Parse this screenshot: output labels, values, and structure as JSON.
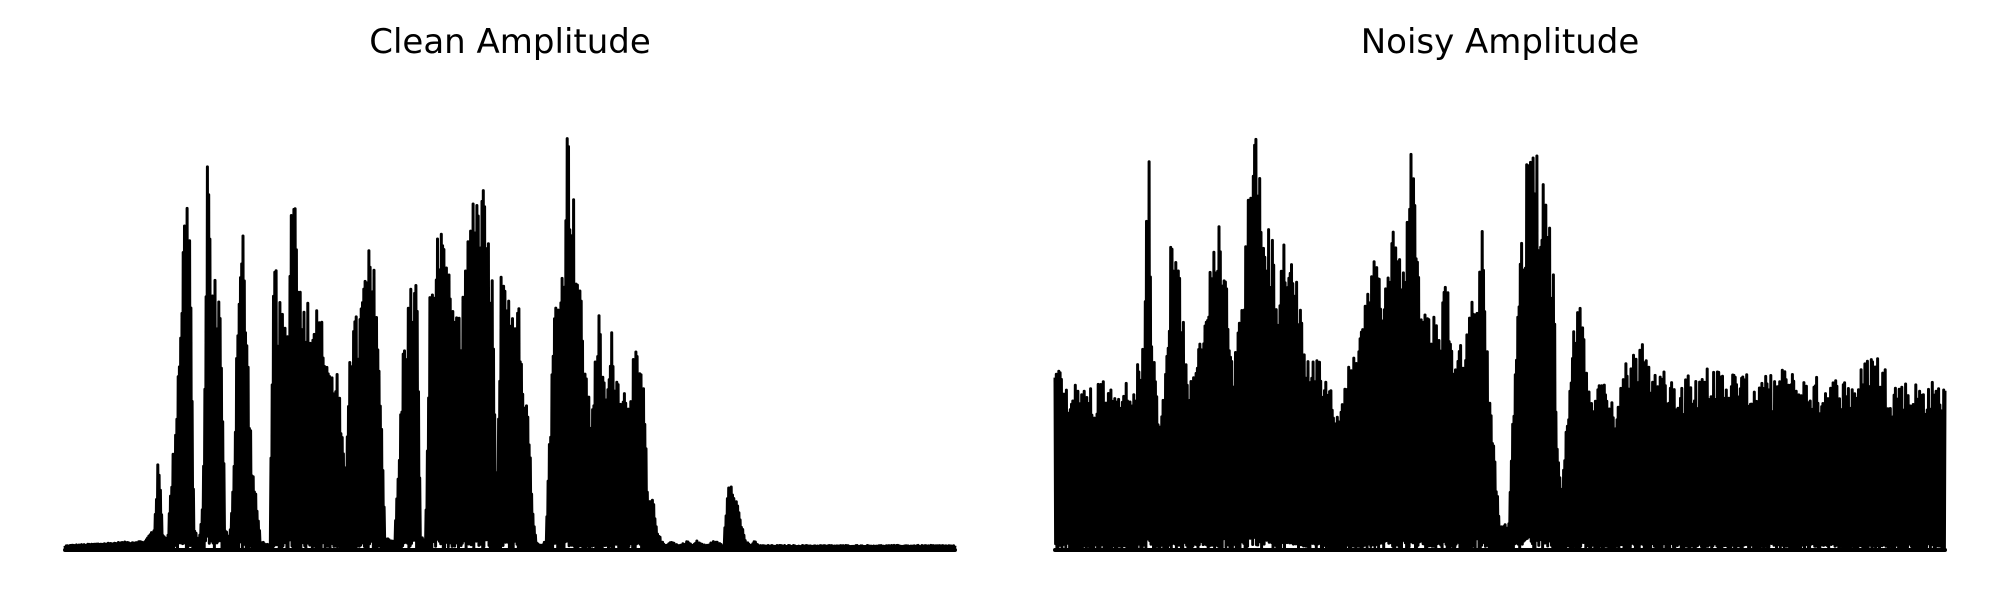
{
  "chart_data": [
    {
      "type": "line",
      "title": "Clean Amplitude",
      "xlabel": "",
      "ylabel": "",
      "axes": "off",
      "grid": false,
      "ylim": [
        0,
        1.0
      ],
      "line_color": "#000000",
      "envelope": {
        "x": [
          0.0,
          0.09,
          0.1,
          0.105,
          0.11,
          0.115,
          0.125,
          0.135,
          0.14,
          0.145,
          0.15,
          0.155,
          0.16,
          0.165,
          0.175,
          0.18,
          0.185,
          0.19,
          0.195,
          0.2,
          0.21,
          0.22,
          0.23,
          0.235,
          0.24,
          0.245,
          0.25,
          0.255,
          0.26,
          0.265,
          0.27,
          0.28,
          0.29,
          0.295,
          0.3,
          0.305,
          0.31,
          0.315,
          0.32,
          0.33,
          0.34,
          0.35,
          0.36,
          0.37,
          0.375,
          0.38,
          0.385,
          0.39,
          0.395,
          0.4,
          0.405,
          0.41,
          0.42,
          0.43,
          0.44,
          0.445,
          0.45,
          0.455,
          0.46,
          0.47,
          0.475,
          0.48,
          0.485,
          0.49,
          0.495,
          0.5,
          0.51,
          0.515,
          0.52,
          0.525,
          0.53,
          0.535,
          0.54,
          0.55,
          0.56,
          0.565,
          0.57,
          0.58,
          0.59,
          0.6,
          0.605,
          0.61,
          0.615,
          0.62,
          0.625,
          0.63,
          0.64,
          0.65,
          0.655,
          0.66,
          0.665,
          0.67,
          0.675,
          0.68,
          0.69,
          0.7,
          0.705,
          0.71,
          0.72,
          0.73,
          0.74,
          0.745,
          0.75,
          0.76,
          0.765,
          0.77,
          0.775,
          0.78,
          0.79,
          0.8,
          0.82,
          0.84,
          0.86,
          0.88,
          0.885,
          0.89,
          0.895,
          0.9,
          0.92,
          0.95,
          1.0
        ],
        "y": [
          0.01,
          0.02,
          0.05,
          0.21,
          0.04,
          0.02,
          0.32,
          0.8,
          0.78,
          0.05,
          0.02,
          0.1,
          0.9,
          0.62,
          0.57,
          0.05,
          0.02,
          0.21,
          0.65,
          0.72,
          0.2,
          0.02,
          0.01,
          0.68,
          0.55,
          0.52,
          0.5,
          0.85,
          0.8,
          0.55,
          0.57,
          0.55,
          0.5,
          0.45,
          0.4,
          0.42,
          0.3,
          0.15,
          0.5,
          0.52,
          0.67,
          0.6,
          0.03,
          0.02,
          0.2,
          0.45,
          0.55,
          0.6,
          0.62,
          0.03,
          0.02,
          0.56,
          0.72,
          0.62,
          0.52,
          0.5,
          0.65,
          0.82,
          0.75,
          0.8,
          0.7,
          0.62,
          0.1,
          0.6,
          0.58,
          0.55,
          0.62,
          0.35,
          0.35,
          0.1,
          0.02,
          0.01,
          0.02,
          0.55,
          0.65,
          0.98,
          0.82,
          0.55,
          0.3,
          0.52,
          0.38,
          0.38,
          0.5,
          0.4,
          0.4,
          0.35,
          0.44,
          0.39,
          0.1,
          0.12,
          0.05,
          0.02,
          0.01,
          0.02,
          0.01,
          0.02,
          0.01,
          0.02,
          0.01,
          0.02,
          0.01,
          0.16,
          0.16,
          0.06,
          0.02,
          0.01,
          0.02,
          0.01,
          0.01,
          0.01,
          0.01,
          0.01,
          0.01,
          0.01,
          0.01,
          0.01,
          0.01,
          0.01,
          0.01,
          0.01,
          0.01
        ]
      }
    },
    {
      "type": "line",
      "title": "Noisy Amplitude",
      "xlabel": "",
      "ylabel": "",
      "axes": "off",
      "grid": false,
      "ylim": [
        0,
        1.0
      ],
      "line_color": "#000000",
      "envelope": {
        "x": [
          0.0,
          0.02,
          0.05,
          0.08,
          0.1,
          0.105,
          0.11,
          0.115,
          0.12,
          0.125,
          0.13,
          0.14,
          0.15,
          0.16,
          0.17,
          0.18,
          0.19,
          0.2,
          0.21,
          0.22,
          0.23,
          0.24,
          0.25,
          0.26,
          0.27,
          0.28,
          0.29,
          0.3,
          0.31,
          0.32,
          0.33,
          0.34,
          0.35,
          0.36,
          0.37,
          0.38,
          0.39,
          0.4,
          0.41,
          0.42,
          0.43,
          0.44,
          0.45,
          0.46,
          0.47,
          0.48,
          0.49,
          0.5,
          0.51,
          0.52,
          0.53,
          0.54,
          0.55,
          0.56,
          0.565,
          0.57,
          0.58,
          0.59,
          0.6,
          0.61,
          0.62,
          0.63,
          0.64,
          0.65,
          0.66,
          0.67,
          0.68,
          0.69,
          0.7,
          0.72,
          0.74,
          0.76,
          0.78,
          0.8,
          0.82,
          0.84,
          0.86,
          0.88,
          0.9,
          0.92,
          0.94,
          0.96,
          0.98,
          1.0
        ],
        "y": [
          0.4,
          0.37,
          0.37,
          0.37,
          0.45,
          0.92,
          0.45,
          0.35,
          0.3,
          0.4,
          0.7,
          0.6,
          0.4,
          0.45,
          0.55,
          0.7,
          0.75,
          0.4,
          0.55,
          0.99,
          0.85,
          0.72,
          0.62,
          0.72,
          0.6,
          0.5,
          0.45,
          0.4,
          0.35,
          0.3,
          0.4,
          0.45,
          0.58,
          0.65,
          0.55,
          0.72,
          0.6,
          0.93,
          0.58,
          0.52,
          0.5,
          0.6,
          0.45,
          0.45,
          0.6,
          0.7,
          0.3,
          0.05,
          0.06,
          0.6,
          0.85,
          0.9,
          0.8,
          0.65,
          0.2,
          0.15,
          0.45,
          0.55,
          0.35,
          0.4,
          0.35,
          0.3,
          0.4,
          0.5,
          0.45,
          0.38,
          0.4,
          0.38,
          0.38,
          0.4,
          0.4,
          0.4,
          0.38,
          0.38,
          0.4,
          0.38,
          0.38,
          0.38,
          0.38,
          0.45,
          0.38,
          0.37,
          0.37,
          0.37
        ]
      }
    }
  ]
}
